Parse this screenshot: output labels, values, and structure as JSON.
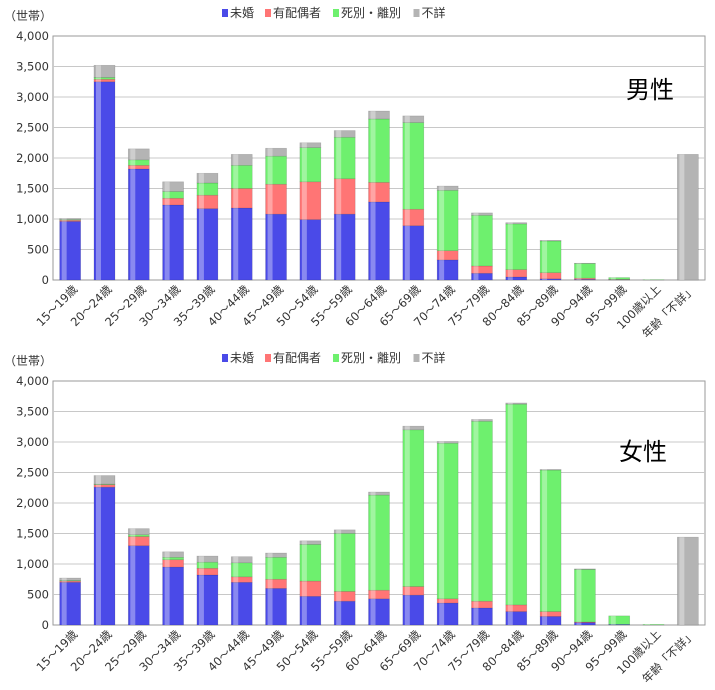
{
  "legend": [
    "未婚",
    "有配偶者",
    "死別・離別",
    "不詳"
  ],
  "colors": {
    "unmarried": "#4a4ae8",
    "married": "#ff7575",
    "widowed": "#6ef06e",
    "unknown": "#b4b4b4"
  },
  "chart_data": [
    {
      "type": "bar",
      "stacked": true,
      "title": "男性",
      "ylabel": "（世帯）",
      "ylim": [
        0,
        4000
      ],
      "yticks": [
        "0",
        "500",
        "1,000",
        "1,500",
        "2,000",
        "2,500",
        "3,000",
        "3,500",
        "4,000"
      ],
      "grid": true,
      "legend_position": "top",
      "categories": [
        "15～19歳",
        "20～24歳",
        "25～29歳",
        "30～34歳",
        "35～39歳",
        "40～44歳",
        "45～49歳",
        "50～54歳",
        "55～59歳",
        "60～64歳",
        "65～69歳",
        "70～74歳",
        "75～79歳",
        "80～84歳",
        "85～89歳",
        "90～94歳",
        "95～99歳",
        "100歳以上",
        "年齢「不詳」"
      ],
      "series": [
        {
          "name": "未婚",
          "values": [
            960,
            3250,
            1820,
            1230,
            1170,
            1180,
            1080,
            990,
            1080,
            1280,
            890,
            330,
            110,
            50,
            20,
            10,
            5,
            0,
            0
          ]
        },
        {
          "name": "有配偶者",
          "values": [
            20,
            40,
            60,
            110,
            220,
            320,
            490,
            620,
            580,
            320,
            270,
            150,
            120,
            120,
            100,
            20,
            5,
            0,
            0
          ]
        },
        {
          "name": "死別・離別",
          "values": [
            10,
            30,
            90,
            110,
            200,
            380,
            460,
            560,
            680,
            1040,
            1420,
            990,
            830,
            750,
            520,
            240,
            30,
            5,
            0
          ]
        },
        {
          "name": "不詳",
          "values": [
            20,
            200,
            180,
            160,
            160,
            180,
            130,
            80,
            110,
            130,
            110,
            70,
            40,
            20,
            10,
            5,
            0,
            0,
            2060
          ]
        }
      ]
    },
    {
      "type": "bar",
      "stacked": true,
      "title": "女性",
      "ylabel": "（世帯）",
      "ylim": [
        0,
        4000
      ],
      "yticks": [
        "0",
        "500",
        "1,000",
        "1,500",
        "2,000",
        "2,500",
        "3,000",
        "3,500",
        "4,000"
      ],
      "grid": true,
      "legend_position": "top",
      "categories": [
        "15～19歳",
        "20～24歳",
        "25～29歳",
        "30～34歳",
        "35～39歳",
        "40～44歳",
        "45～49歳",
        "50～54歳",
        "55～59歳",
        "60～64歳",
        "65～69歳",
        "70～74歳",
        "75～79歳",
        "80～84歳",
        "85～89歳",
        "90～94歳",
        "95～99歳",
        "100歳以上",
        "年齢「不詳」"
      ],
      "series": [
        {
          "name": "未婚",
          "values": [
            700,
            2260,
            1300,
            950,
            820,
            700,
            600,
            470,
            390,
            430,
            490,
            360,
            280,
            220,
            140,
            40,
            10,
            0,
            0
          ]
        },
        {
          "name": "有配偶者",
          "values": [
            20,
            40,
            150,
            120,
            110,
            90,
            150,
            250,
            160,
            140,
            140,
            70,
            110,
            110,
            80,
            10,
            0,
            0,
            0
          ]
        },
        {
          "name": "死別・離別",
          "values": [
            10,
            10,
            30,
            40,
            100,
            230,
            360,
            600,
            950,
            1560,
            2570,
            2550,
            2950,
            3290,
            2320,
            860,
            140,
            10,
            0
          ]
        },
        {
          "name": "不詳",
          "values": [
            40,
            140,
            100,
            90,
            100,
            100,
            70,
            60,
            60,
            50,
            60,
            30,
            30,
            20,
            10,
            10,
            0,
            0,
            1440
          ]
        }
      ]
    }
  ]
}
